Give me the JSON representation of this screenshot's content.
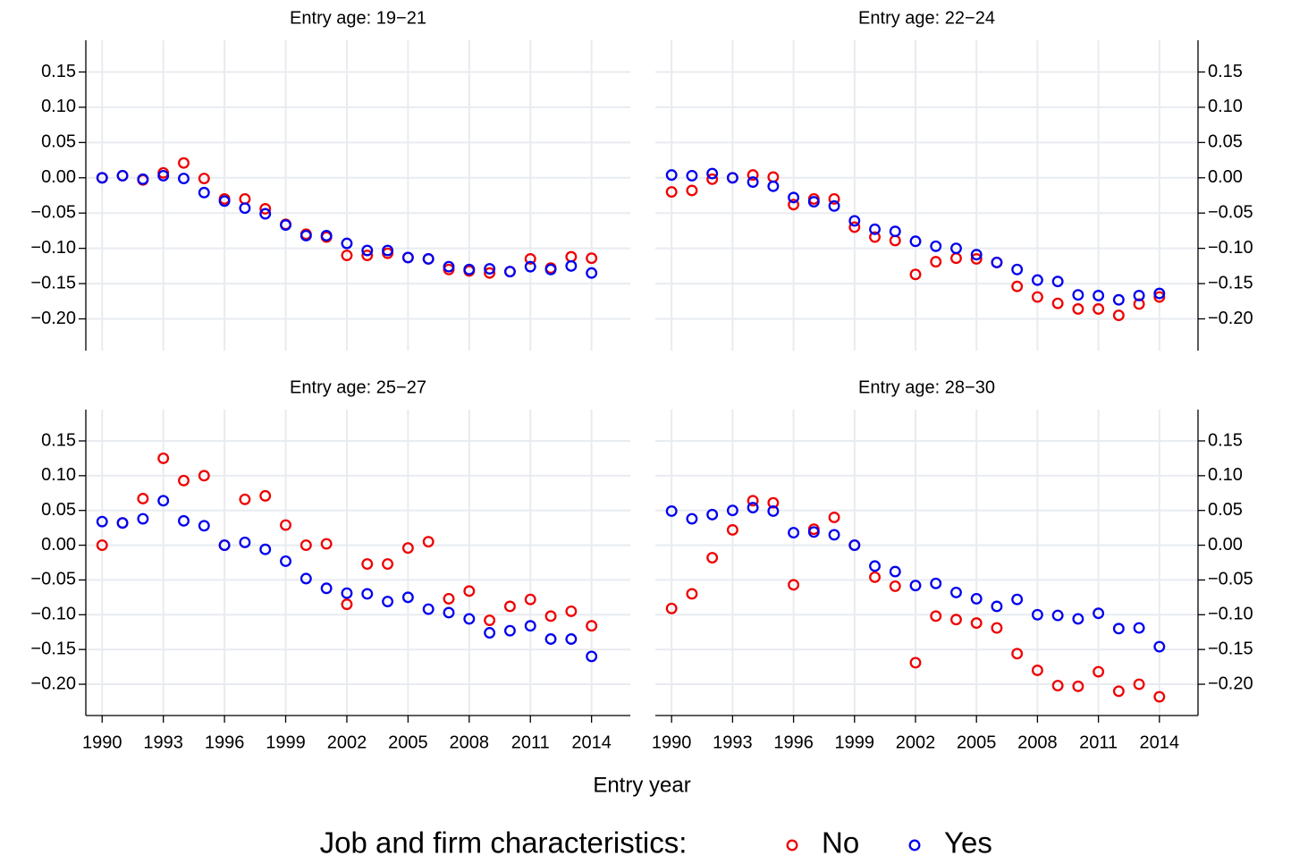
{
  "chart_data": [
    {
      "type": "scatter",
      "title": "Entry age: 19−21",
      "y_axis_side": "left",
      "x_axis": false,
      "grid": true,
      "x": [
        1990,
        1991,
        1992,
        1993,
        1994,
        1995,
        1996,
        1997,
        1998,
        1999,
        2000,
        2001,
        2002,
        2003,
        2004,
        2005,
        2006,
        2007,
        2008,
        2009,
        2010,
        2011,
        2012,
        2013,
        2014
      ],
      "xlim": [
        1989.2,
        2015.9
      ],
      "xticks": [
        1990,
        1993,
        1996,
        1999,
        2002,
        2005,
        2008,
        2011,
        2014
      ],
      "ylim": [
        -0.245,
        0.195
      ],
      "yticks": [
        {
          "value": -0.2,
          "label": "−0.20"
        },
        {
          "value": -0.15,
          "label": "−0.15"
        },
        {
          "value": -0.1,
          "label": "−0.10"
        },
        {
          "value": -0.05,
          "label": "−0.05"
        },
        {
          "value": 0,
          "label": "0.00"
        },
        {
          "value": 0.05,
          "label": "0.05"
        },
        {
          "value": 0.1,
          "label": "0.10"
        },
        0.15
      ],
      "series": [
        {
          "name": "No",
          "color": "#ee0000",
          "values": [
            0,
            0.003,
            -0.003,
            0.007,
            0.021,
            -0.001,
            -0.03,
            -0.03,
            -0.044,
            -0.066,
            -0.08,
            -0.084,
            -0.11,
            -0.11,
            -0.107,
            -0.113,
            -0.115,
            -0.13,
            -0.132,
            -0.135,
            -0.133,
            -0.115,
            -0.128,
            -0.112,
            -0.114
          ]
        },
        {
          "name": "Yes",
          "color": "#0000ee",
          "values": [
            0,
            0.003,
            -0.002,
            0.003,
            -0.001,
            -0.021,
            -0.033,
            -0.043,
            -0.051,
            -0.067,
            -0.082,
            -0.082,
            -0.093,
            -0.103,
            -0.103,
            -0.113,
            -0.115,
            -0.126,
            -0.13,
            -0.129,
            -0.133,
            -0.126,
            -0.13,
            -0.125,
            -0.135
          ]
        }
      ]
    },
    {
      "type": "scatter",
      "title": "Entry age: 22−24",
      "y_axis_side": "right",
      "x_axis": false,
      "grid": true,
      "x": [
        1990,
        1991,
        1992,
        1993,
        1994,
        1995,
        1996,
        1997,
        1998,
        1999,
        2000,
        2001,
        2002,
        2003,
        2004,
        2005,
        2006,
        2007,
        2008,
        2009,
        2010,
        2011,
        2012,
        2013,
        2014
      ],
      "xlim": [
        1989.2,
        2015.9
      ],
      "xticks": [
        1990,
        1993,
        1996,
        1999,
        2002,
        2005,
        2008,
        2011,
        2014
      ],
      "ylim": [
        -0.245,
        0.195
      ],
      "yticks": [
        {
          "value": -0.2,
          "label": "−0.20"
        },
        {
          "value": -0.15,
          "label": "−0.15"
        },
        {
          "value": -0.1,
          "label": "−0.10"
        },
        {
          "value": -0.05,
          "label": "−0.05"
        },
        {
          "value": 0,
          "label": "0.00"
        },
        {
          "value": 0.05,
          "label": "0.05"
        },
        {
          "value": 0.1,
          "label": "0.10"
        },
        0.15
      ],
      "series": [
        {
          "name": "No",
          "color": "#ee0000",
          "values": [
            -0.02,
            -0.018,
            -0.002,
            0,
            0.004,
            0.001,
            -0.038,
            -0.03,
            -0.03,
            -0.07,
            -0.084,
            -0.089,
            -0.137,
            -0.119,
            -0.114,
            -0.115,
            -0.12,
            -0.154,
            -0.169,
            -0.178,
            -0.186,
            -0.186,
            -0.195,
            -0.179,
            -0.169
          ]
        },
        {
          "name": "Yes",
          "color": "#0000ee",
          "values": [
            0.004,
            0.003,
            0.006,
            0,
            -0.006,
            -0.012,
            -0.028,
            -0.034,
            -0.04,
            -0.061,
            -0.073,
            -0.076,
            -0.09,
            -0.097,
            -0.1,
            -0.109,
            -0.12,
            -0.13,
            -0.145,
            -0.147,
            -0.166,
            -0.167,
            -0.173,
            -0.167,
            -0.164
          ]
        }
      ]
    },
    {
      "type": "scatter",
      "title": "Entry age: 25−27",
      "y_axis_side": "left",
      "x_axis": true,
      "grid": true,
      "x": [
        1990,
        1991,
        1992,
        1993,
        1994,
        1995,
        1996,
        1997,
        1998,
        1999,
        2000,
        2001,
        2002,
        2003,
        2004,
        2005,
        2006,
        2007,
        2008,
        2009,
        2010,
        2011,
        2012,
        2013,
        2014
      ],
      "xlim": [
        1989.2,
        2015.9
      ],
      "xticks": [
        1990,
        1993,
        1996,
        1999,
        2002,
        2005,
        2008,
        2011,
        2014
      ],
      "ylim": [
        -0.245,
        0.195
      ],
      "yticks": [
        {
          "value": -0.2,
          "label": "−0.20"
        },
        {
          "value": -0.15,
          "label": "−0.15"
        },
        {
          "value": -0.1,
          "label": "−0.10"
        },
        {
          "value": -0.05,
          "label": "−0.05"
        },
        {
          "value": 0,
          "label": "0.00"
        },
        {
          "value": 0.05,
          "label": "0.05"
        },
        {
          "value": 0.1,
          "label": "0.10"
        },
        0.15
      ],
      "series": [
        {
          "name": "No",
          "color": "#ee0000",
          "values": [
            0,
            0.032,
            0.067,
            0.125,
            0.093,
            0.1,
            0,
            0.066,
            0.071,
            0.029,
            0,
            0.002,
            -0.085,
            -0.027,
            -0.027,
            -0.004,
            0.005,
            -0.077,
            -0.066,
            -0.108,
            -0.088,
            -0.078,
            -0.102,
            -0.095,
            -0.116
          ]
        },
        {
          "name": "Yes",
          "color": "#0000ee",
          "values": [
            0.034,
            0.032,
            0.038,
            0.064,
            0.035,
            0.028,
            0,
            0.004,
            -0.006,
            -0.023,
            -0.048,
            -0.062,
            -0.069,
            -0.07,
            -0.081,
            -0.075,
            -0.092,
            -0.097,
            -0.106,
            -0.126,
            -0.123,
            -0.116,
            -0.135,
            -0.135,
            -0.16
          ]
        }
      ]
    },
    {
      "type": "scatter",
      "title": "Entry age: 28−30",
      "y_axis_side": "right",
      "x_axis": true,
      "grid": true,
      "x": [
        1990,
        1991,
        1992,
        1993,
        1994,
        1995,
        1996,
        1997,
        1998,
        1999,
        2000,
        2001,
        2002,
        2003,
        2004,
        2005,
        2006,
        2007,
        2008,
        2009,
        2010,
        2011,
        2012,
        2013,
        2014
      ],
      "xlim": [
        1989.2,
        2015.9
      ],
      "xticks": [
        1990,
        1993,
        1996,
        1999,
        2002,
        2005,
        2008,
        2011,
        2014
      ],
      "ylim": [
        -0.245,
        0.195
      ],
      "yticks": [
        {
          "value": -0.2,
          "label": "−0.20"
        },
        {
          "value": -0.15,
          "label": "−0.15"
        },
        {
          "value": -0.1,
          "label": "−0.10"
        },
        {
          "value": -0.05,
          "label": "−0.05"
        },
        {
          "value": 0,
          "label": "0.00"
        },
        {
          "value": 0.05,
          "label": "0.05"
        },
        {
          "value": 0.1,
          "label": "0.10"
        },
        0.15
      ],
      "series": [
        {
          "name": "No",
          "color": "#ee0000",
          "values": [
            -0.091,
            -0.07,
            -0.018,
            0.022,
            0.064,
            0.061,
            -0.057,
            0.023,
            0.04,
            0,
            -0.046,
            -0.059,
            -0.169,
            -0.102,
            -0.107,
            -0.112,
            -0.119,
            -0.156,
            -0.18,
            -0.202,
            -0.203,
            -0.182,
            -0.21,
            -0.2,
            -0.218
          ]
        },
        {
          "name": "Yes",
          "color": "#0000ee",
          "values": [
            0.049,
            0.038,
            0.044,
            0.05,
            0.054,
            0.049,
            0.018,
            0.019,
            0.015,
            0,
            -0.03,
            -0.038,
            -0.058,
            -0.055,
            -0.068,
            -0.077,
            -0.088,
            -0.078,
            -0.1,
            -0.101,
            -0.106,
            -0.098,
            -0.12,
            -0.119,
            -0.146
          ]
        }
      ]
    }
  ],
  "xlabel": "Entry year",
  "legend_title": "Job and firm characteristics:"
}
